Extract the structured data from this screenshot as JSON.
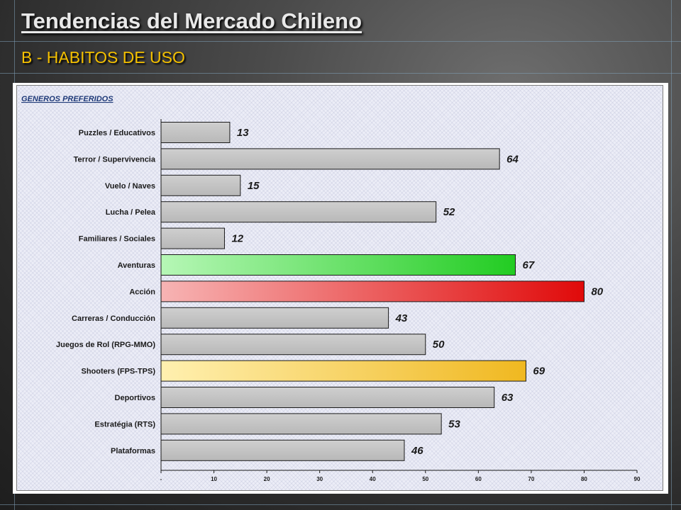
{
  "slide": {
    "title": "Tendencias del Mercado Chileno",
    "subtitle": "B - HABITOS DE USO"
  },
  "chart_data": {
    "type": "bar",
    "orientation": "horizontal",
    "title": "GENEROS PREFERIDOS",
    "categories": [
      "Puzzles / Educativos",
      "Terror / Supervivencia",
      "Vuelo / Naves",
      "Lucha / Pelea",
      "Familiares / Sociales",
      "Aventuras",
      "Acción",
      "Carreras / Conducción",
      "Juegos de Rol (RPG-MMO)",
      "Shooters (FPS-TPS)",
      "Deportivos",
      "Estratégia (RTS)",
      "Plataformas"
    ],
    "values": [
      13,
      64,
      15,
      52,
      12,
      67,
      80,
      43,
      50,
      69,
      63,
      53,
      46
    ],
    "highlights": {
      "Aventuras": "green",
      "Acción": "red",
      "Shooters (FPS-TPS)": "yellow"
    },
    "xlim": [
      0,
      90
    ],
    "xticks": [
      "-",
      "10",
      "20",
      "30",
      "40",
      "50",
      "60",
      "70",
      "80",
      "90"
    ],
    "grid": false,
    "legend": "none",
    "colors": {
      "default_bar": "#c0c0c0",
      "green": "#3dd93d",
      "red": "#e81818",
      "yellow": "#f0be2a",
      "title": "#1f3a78"
    }
  }
}
